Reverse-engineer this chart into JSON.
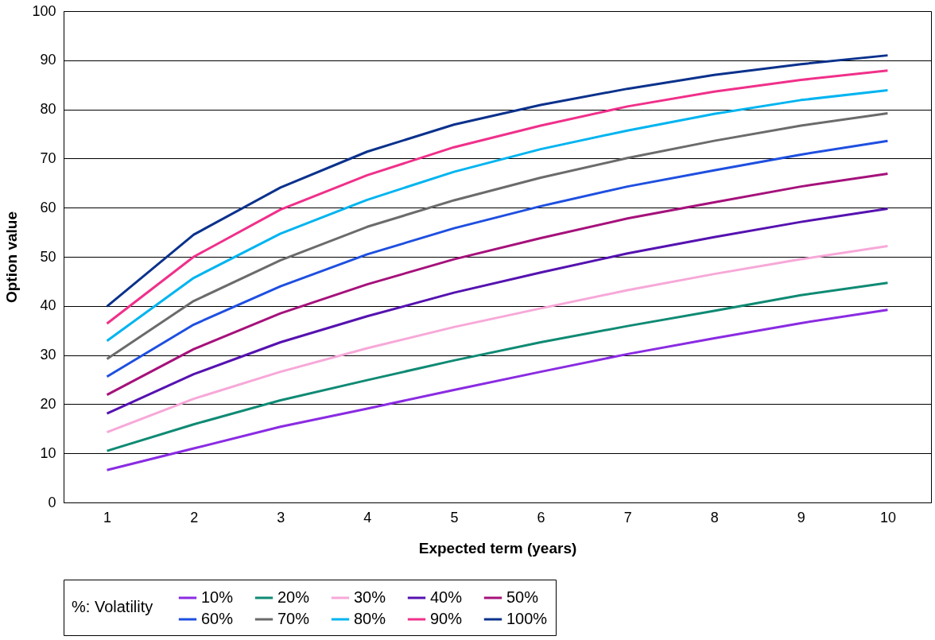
{
  "chart_data": {
    "type": "line",
    "xlabel": "Expected term (years)",
    "ylabel": "Option value",
    "legend_title": "%: Volatility",
    "x": [
      1,
      2,
      3,
      4,
      5,
      6,
      7,
      8,
      9,
      10
    ],
    "xlim": [
      0.5,
      10.5
    ],
    "xticks": [
      1,
      2,
      3,
      4,
      5,
      6,
      7,
      8,
      9,
      10
    ],
    "ylim": [
      0,
      100
    ],
    "yticks": [
      0,
      10,
      20,
      30,
      40,
      50,
      60,
      70,
      80,
      90,
      100
    ],
    "grid": "y",
    "legend": "bottom",
    "marker": "none",
    "line_style": "solid",
    "series": [
      {
        "name": "10%",
        "color": "#8a2be2",
        "values": [
          6.6,
          11,
          15.4,
          19.1,
          22.9,
          26.6,
          30.2,
          33.4,
          36.5,
          39.2
        ]
      },
      {
        "name": "20%",
        "color": "#0f8a74",
        "values": [
          10.5,
          15.9,
          20.8,
          24.9,
          28.9,
          32.6,
          35.9,
          39,
          42.2,
          44.7
        ]
      },
      {
        "name": "30%",
        "color": "#f7a8d8",
        "values": [
          14.3,
          21.1,
          26.6,
          31.4,
          35.7,
          39.5,
          43.2,
          46.5,
          49.5,
          52.2
        ]
      },
      {
        "name": "40%",
        "color": "#5512b0",
        "values": [
          18.1,
          26.1,
          32.6,
          37.9,
          42.7,
          46.8,
          50.7,
          54,
          57.1,
          59.8
        ]
      },
      {
        "name": "50%",
        "color": "#a5117b",
        "values": [
          21.9,
          31.2,
          38.5,
          44.4,
          49.5,
          53.8,
          57.8,
          61.1,
          64.3,
          66.9
        ]
      },
      {
        "name": "60%",
        "color": "#1e4fe0",
        "values": [
          25.6,
          36.2,
          44,
          50.5,
          55.8,
          60.3,
          64.3,
          67.6,
          70.8,
          73.6
        ]
      },
      {
        "name": "70%",
        "color": "#6b6b6b",
        "values": [
          29.2,
          41,
          49.3,
          56.1,
          61.5,
          66.1,
          70.1,
          73.6,
          76.7,
          79.2
        ]
      },
      {
        "name": "80%",
        "color": "#00b4f0",
        "values": [
          32.9,
          45.7,
          54.7,
          61.6,
          67.3,
          71.9,
          75.7,
          79.1,
          81.9,
          83.9
        ]
      },
      {
        "name": "90%",
        "color": "#f0308a",
        "values": [
          36.4,
          50,
          59.6,
          66.6,
          72.3,
          76.7,
          80.6,
          83.6,
          86,
          87.9
        ]
      },
      {
        "name": "100%",
        "color": "#0a318c",
        "values": [
          39.9,
          54.5,
          64.1,
          71.4,
          76.9,
          80.9,
          84.2,
          87,
          89.2,
          91
        ]
      }
    ]
  }
}
